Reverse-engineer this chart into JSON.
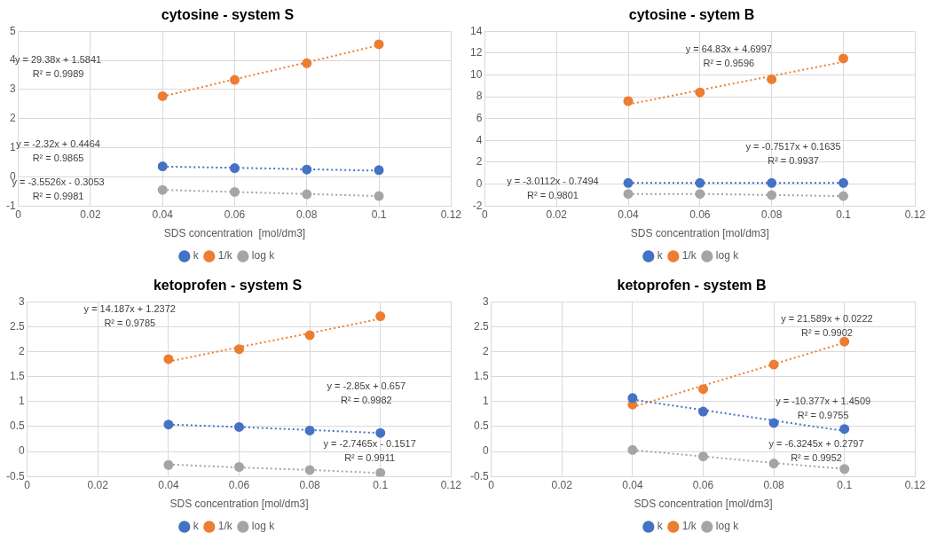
{
  "chart_data": [
    {
      "type": "scatter",
      "title": "cytosine - system S",
      "xlabel": "SDS concentration  [mol/dm3]",
      "x": [
        0.04,
        0.06,
        0.08,
        0.1
      ],
      "series": [
        {
          "name": "k",
          "color": "#4472c4",
          "values": [
            0.36,
            0.3,
            0.25,
            0.23
          ]
        },
        {
          "name": "1/k",
          "color": "#ed7d31",
          "values": [
            2.77,
            3.33,
            3.9,
            4.55
          ]
        },
        {
          "name": "log k",
          "color": "#a5a5a5",
          "values": [
            -0.45,
            -0.52,
            -0.6,
            -0.66
          ]
        },
        {
          "type": "line",
          "color": "#4472c4",
          "values": [
            0.35,
            0.31,
            0.26,
            0.21
          ],
          "marker": "none",
          "line_style": "dotted"
        },
        {
          "type": "line",
          "color": "#ed7d31",
          "values": [
            2.76,
            3.35,
            3.93,
            4.52
          ],
          "marker": "none",
          "line_style": "dotted"
        },
        {
          "type": "line",
          "color": "#a5a5a5",
          "values": [
            -0.45,
            -0.52,
            -0.59,
            -0.66
          ],
          "marker": "none",
          "line_style": "dotted"
        }
      ],
      "annotations": [
        "y = 29.38x + 1.5841\nR² = 0.9989",
        "y = -2.32x + 0.4464\nR² = 0.9865",
        "y = -3.5526x - 0.3053\nR² = 0.9981"
      ],
      "xlim": [
        0,
        0.12
      ],
      "xticks": [
        0,
        0.02,
        0.04,
        0.06,
        0.08,
        0.1,
        0.12
      ],
      "ylim": [
        -1,
        5
      ],
      "yticks": [
        -1,
        0,
        1,
        2,
        3,
        4,
        5
      ],
      "grid": true,
      "legend": "bottom",
      "marker": "circle"
    },
    {
      "type": "scatter",
      "title": "cytosine - sytem B",
      "xlabel": "SDS concentration [mol/dm3]",
      "x": [
        0.04,
        0.06,
        0.08,
        0.1
      ],
      "series": [
        {
          "name": "k",
          "color": "#4472c4",
          "values": [
            0.1,
            0.1,
            0.1,
            0.1
          ]
        },
        {
          "name": "1/k",
          "color": "#ed7d31",
          "values": [
            7.6,
            8.4,
            9.6,
            11.5
          ]
        },
        {
          "name": "log k",
          "color": "#a5a5a5",
          "values": [
            -0.9,
            -0.9,
            -1.0,
            -1.1
          ]
        },
        {
          "type": "line",
          "color": "#4472c4",
          "values": [
            0.1,
            0.1,
            0.1,
            0.1
          ],
          "marker": "none",
          "line_style": "dotted"
        },
        {
          "type": "line",
          "color": "#ed7d31",
          "values": [
            7.3,
            8.6,
            9.9,
            11.2
          ],
          "marker": "none",
          "line_style": "dotted"
        },
        {
          "type": "line",
          "color": "#a5a5a5",
          "values": [
            -0.9,
            -0.9,
            -1.0,
            -1.1
          ],
          "marker": "none",
          "line_style": "dotted"
        }
      ],
      "annotations": [
        "y = 64.83x + 4.6997\nR² = 0.9596",
        "y = -0.7517x + 0.1635\nR² = 0.9937",
        "y = -3.0112x - 0.7494\nR² = 0.9801"
      ],
      "xlim": [
        0,
        0.12
      ],
      "xticks": [
        0,
        0.02,
        0.04,
        0.06,
        0.08,
        0.1,
        0.12
      ],
      "ylim": [
        -2,
        14
      ],
      "yticks": [
        -2,
        0,
        2,
        4,
        6,
        8,
        10,
        12,
        14
      ],
      "grid": true,
      "legend": "bottom",
      "marker": "circle"
    },
    {
      "type": "scatter",
      "title": "ketoprofen - system S",
      "xlabel": "SDS concentration [mol/dm3]",
      "x": [
        0.04,
        0.06,
        0.08,
        0.1
      ],
      "series": [
        {
          "name": "k",
          "color": "#4472c4",
          "values": [
            0.54,
            0.49,
            0.42,
            0.37
          ]
        },
        {
          "name": "1/k",
          "color": "#ed7d31",
          "values": [
            1.85,
            2.05,
            2.33,
            2.71
          ]
        },
        {
          "name": "log k",
          "color": "#a5a5a5",
          "values": [
            -0.27,
            -0.31,
            -0.37,
            -0.43
          ]
        },
        {
          "type": "line",
          "color": "#4472c4",
          "values": [
            0.54,
            0.49,
            0.43,
            0.37
          ],
          "marker": "none",
          "line_style": "dotted"
        },
        {
          "type": "line",
          "color": "#ed7d31",
          "values": [
            1.8,
            2.09,
            2.37,
            2.66
          ],
          "marker": "none",
          "line_style": "dotted"
        },
        {
          "type": "line",
          "color": "#a5a5a5",
          "values": [
            -0.26,
            -0.32,
            -0.37,
            -0.43
          ],
          "marker": "none",
          "line_style": "dotted"
        }
      ],
      "annotations": [
        "y = 14.187x + 1.2372\nR² = 0.9785",
        "y = -2.85x + 0.657\nR² = 0.9982",
        "y = -2.7465x - 0.1517\nR² = 0.9911"
      ],
      "xlim": [
        0,
        0.12
      ],
      "xticks": [
        0,
        0.02,
        0.04,
        0.06,
        0.08,
        0.1,
        0.12
      ],
      "ylim": [
        -0.5,
        3
      ],
      "yticks": [
        -0.5,
        0,
        0.5,
        1,
        1.5,
        2,
        2.5,
        3
      ],
      "grid": true,
      "legend": "bottom",
      "marker": "circle"
    },
    {
      "type": "scatter",
      "title": "ketoprofen - system B",
      "xlabel": "SDS concentration [mol/dm3]",
      "x": [
        0.04,
        0.06,
        0.08,
        0.1
      ],
      "series": [
        {
          "name": "k",
          "color": "#4472c4",
          "values": [
            1.07,
            0.8,
            0.57,
            0.45
          ]
        },
        {
          "name": "1/k",
          "color": "#ed7d31",
          "values": [
            0.94,
            1.25,
            1.74,
            2.2
          ]
        },
        {
          "name": "log k",
          "color": "#a5a5a5",
          "values": [
            0.03,
            -0.1,
            -0.24,
            -0.35
          ]
        },
        {
          "type": "line",
          "color": "#4472c4",
          "values": [
            1.04,
            0.83,
            0.62,
            0.41
          ],
          "marker": "none",
          "line_style": "dotted"
        },
        {
          "type": "line",
          "color": "#ed7d31",
          "values": [
            0.89,
            1.32,
            1.75,
            2.18
          ],
          "marker": "none",
          "line_style": "dotted"
        },
        {
          "type": "line",
          "color": "#a5a5a5",
          "values": [
            0.03,
            -0.1,
            -0.23,
            -0.35
          ],
          "marker": "none",
          "line_style": "dotted"
        }
      ],
      "annotations": [
        "y = 21.589x + 0.0222\nR² = 0.9902",
        "y = -10.377x + 1.4509\nR² = 0.9755",
        "y = -6.3245x + 0.2797\nR² = 0.9952"
      ],
      "xlim": [
        0,
        0.12
      ],
      "xticks": [
        0,
        0.02,
        0.04,
        0.06,
        0.08,
        0.1,
        0.12
      ],
      "ylim": [
        -0.5,
        3
      ],
      "yticks": [
        -0.5,
        0,
        0.5,
        1,
        1.5,
        2,
        2.5,
        3
      ],
      "grid": true,
      "legend": "bottom",
      "marker": "circle"
    }
  ]
}
